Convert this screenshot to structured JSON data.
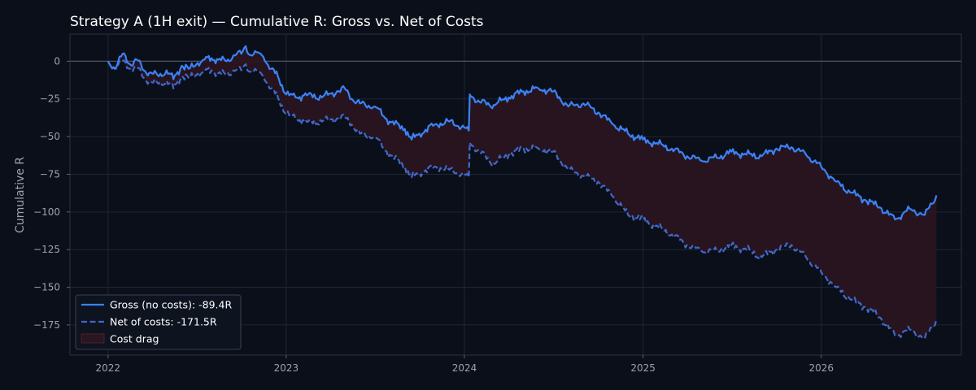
{
  "chart_data": {
    "type": "line",
    "title": "Strategy A (1H exit) — Cumulative R: Gross vs. Net of Costs",
    "xlabel": "",
    "ylabel": "Cumulative R",
    "x_ticks": [
      "2022",
      "2023",
      "2024",
      "2025",
      "2026"
    ],
    "y_ticks": [
      0,
      -25,
      -50,
      -75,
      -100,
      -125,
      -150,
      -175
    ],
    "xlim": [
      "2021-10-15",
      "2026-10-15"
    ],
    "ylim": [
      -195,
      18
    ],
    "grid": true,
    "legend_position": "lower-left",
    "zero_line": true,
    "colors": {
      "gross": "#3b82f6",
      "net": "#3f68c8",
      "cost_drag_fill": "#2a1520",
      "cost_drag_edge": "#4a2230",
      "background": "#0b0f19",
      "grid": "#1f2636"
    },
    "series": [
      {
        "name": "Gross (no costs): -89.4R",
        "style": "solid",
        "points": [
          [
            "2022-01-01",
            0
          ],
          [
            "2022-01-15",
            -5
          ],
          [
            "2022-01-31",
            5
          ],
          [
            "2022-02-15",
            -2
          ],
          [
            "2022-03-01",
            1
          ],
          [
            "2022-03-15",
            -6
          ],
          [
            "2022-04-01",
            -8
          ],
          [
            "2022-04-15",
            -10
          ],
          [
            "2022-05-01",
            -6
          ],
          [
            "2022-05-15",
            -12
          ],
          [
            "2022-06-01",
            -3
          ],
          [
            "2022-06-15",
            -5
          ],
          [
            "2022-07-01",
            -2
          ],
          [
            "2022-07-15",
            1
          ],
          [
            "2022-08-01",
            2
          ],
          [
            "2022-08-15",
            1
          ],
          [
            "2022-09-01",
            0
          ],
          [
            "2022-09-15",
            4
          ],
          [
            "2022-10-01",
            5
          ],
          [
            "2022-10-10",
            10
          ],
          [
            "2022-10-20",
            4
          ],
          [
            "2022-11-01",
            6
          ],
          [
            "2022-11-15",
            3
          ],
          [
            "2022-12-01",
            -5
          ],
          [
            "2022-12-15",
            -10
          ],
          [
            "2023-01-01",
            -22
          ],
          [
            "2023-01-20",
            -24
          ],
          [
            "2023-02-15",
            -22
          ],
          [
            "2023-03-15",
            -24
          ],
          [
            "2023-04-15",
            -20
          ],
          [
            "2023-05-01",
            -18
          ],
          [
            "2023-05-15",
            -25
          ],
          [
            "2023-06-01",
            -28
          ],
          [
            "2023-07-01",
            -30
          ],
          [
            "2023-08-01",
            -40
          ],
          [
            "2023-09-01",
            -45
          ],
          [
            "2023-09-15",
            -52
          ],
          [
            "2023-10-01",
            -48
          ],
          [
            "2023-11-01",
            -42
          ],
          [
            "2023-12-01",
            -40
          ],
          [
            "2024-01-01",
            -44
          ],
          [
            "2024-01-10",
            -46
          ],
          [
            "2024-01-12",
            -22
          ],
          [
            "2024-02-01",
            -27
          ],
          [
            "2024-03-01",
            -29
          ],
          [
            "2024-04-01",
            -24
          ],
          [
            "2024-05-01",
            -20
          ],
          [
            "2024-06-01",
            -18
          ],
          [
            "2024-07-01",
            -20
          ],
          [
            "2024-08-01",
            -30
          ],
          [
            "2024-09-01",
            -28
          ],
          [
            "2024-10-01",
            -34
          ],
          [
            "2024-11-01",
            -42
          ],
          [
            "2024-12-01",
            -48
          ],
          [
            "2025-01-01",
            -52
          ],
          [
            "2025-02-01",
            -55
          ],
          [
            "2025-03-01",
            -58
          ],
          [
            "2025-04-01",
            -63
          ],
          [
            "2025-05-01",
            -66
          ],
          [
            "2025-06-01",
            -64
          ],
          [
            "2025-07-01",
            -60
          ],
          [
            "2025-08-01",
            -62
          ],
          [
            "2025-09-01",
            -63
          ],
          [
            "2025-10-01",
            -58
          ],
          [
            "2025-11-01",
            -57
          ],
          [
            "2025-12-01",
            -62
          ],
          [
            "2026-01-01",
            -70
          ],
          [
            "2026-02-01",
            -80
          ],
          [
            "2026-03-01",
            -87
          ],
          [
            "2026-04-01",
            -92
          ],
          [
            "2026-05-01",
            -97
          ],
          [
            "2026-06-01",
            -105
          ],
          [
            "2026-07-01",
            -98
          ],
          [
            "2026-08-01",
            -102
          ],
          [
            "2026-08-25",
            -89
          ]
        ]
      },
      {
        "name": "Net of costs: -171.5R",
        "style": "dashed",
        "points": [
          [
            "2022-01-01",
            0
          ],
          [
            "2022-01-15",
            -5
          ],
          [
            "2022-01-31",
            0
          ],
          [
            "2022-02-15",
            -5
          ],
          [
            "2022-03-01",
            -4
          ],
          [
            "2022-03-15",
            -11
          ],
          [
            "2022-04-01",
            -14
          ],
          [
            "2022-04-15",
            -15
          ],
          [
            "2022-05-01",
            -13
          ],
          [
            "2022-05-15",
            -18
          ],
          [
            "2022-06-01",
            -10
          ],
          [
            "2022-06-15",
            -11
          ],
          [
            "2022-07-01",
            -9
          ],
          [
            "2022-07-15",
            -7
          ],
          [
            "2022-08-01",
            -6
          ],
          [
            "2022-08-15",
            -8
          ],
          [
            "2022-09-01",
            -9
          ],
          [
            "2022-09-15",
            -6
          ],
          [
            "2022-10-01",
            -6
          ],
          [
            "2022-10-10",
            -2
          ],
          [
            "2022-10-20",
            -7
          ],
          [
            "2022-11-01",
            -6
          ],
          [
            "2022-11-15",
            -10
          ],
          [
            "2022-12-01",
            -18
          ],
          [
            "2022-12-15",
            -24
          ],
          [
            "2023-01-01",
            -35
          ],
          [
            "2023-01-20",
            -38
          ],
          [
            "2023-02-15",
            -40
          ],
          [
            "2023-03-15",
            -40
          ],
          [
            "2023-04-15",
            -38
          ],
          [
            "2023-05-01",
            -37
          ],
          [
            "2023-05-15",
            -42
          ],
          [
            "2023-06-01",
            -48
          ],
          [
            "2023-07-01",
            -50
          ],
          [
            "2023-08-01",
            -62
          ],
          [
            "2023-09-01",
            -70
          ],
          [
            "2023-09-15",
            -77
          ],
          [
            "2023-10-01",
            -74
          ],
          [
            "2023-11-01",
            -70
          ],
          [
            "2023-12-01",
            -72
          ],
          [
            "2024-01-01",
            -75
          ],
          [
            "2024-01-10",
            -77
          ],
          [
            "2024-01-12",
            -54
          ],
          [
            "2024-02-01",
            -60
          ],
          [
            "2024-03-01",
            -68
          ],
          [
            "2024-04-01",
            -62
          ],
          [
            "2024-05-01",
            -58
          ],
          [
            "2024-06-01",
            -58
          ],
          [
            "2024-07-01",
            -60
          ],
          [
            "2024-08-01",
            -72
          ],
          [
            "2024-09-01",
            -76
          ],
          [
            "2024-10-01",
            -80
          ],
          [
            "2024-11-01",
            -90
          ],
          [
            "2024-12-01",
            -102
          ],
          [
            "2025-01-01",
            -105
          ],
          [
            "2025-02-01",
            -110
          ],
          [
            "2025-03-01",
            -115
          ],
          [
            "2025-04-01",
            -122
          ],
          [
            "2025-05-01",
            -126
          ],
          [
            "2025-06-01",
            -126
          ],
          [
            "2025-07-01",
            -122
          ],
          [
            "2025-08-01",
            -125
          ],
          [
            "2025-09-01",
            -130
          ],
          [
            "2025-10-01",
            -125
          ],
          [
            "2025-11-01",
            -122
          ],
          [
            "2025-12-01",
            -130
          ],
          [
            "2026-01-01",
            -140
          ],
          [
            "2026-02-01",
            -150
          ],
          [
            "2026-03-01",
            -158
          ],
          [
            "2026-04-01",
            -163
          ],
          [
            "2026-05-01",
            -170
          ],
          [
            "2026-06-01",
            -182
          ],
          [
            "2026-07-01",
            -178
          ],
          [
            "2026-08-01",
            -184
          ],
          [
            "2026-08-25",
            -171.5
          ]
        ]
      }
    ],
    "fill_between": {
      "name": "Cost drag",
      "between": [
        "Gross (no costs): -89.4R",
        "Net of costs: -171.5R"
      ]
    }
  }
}
